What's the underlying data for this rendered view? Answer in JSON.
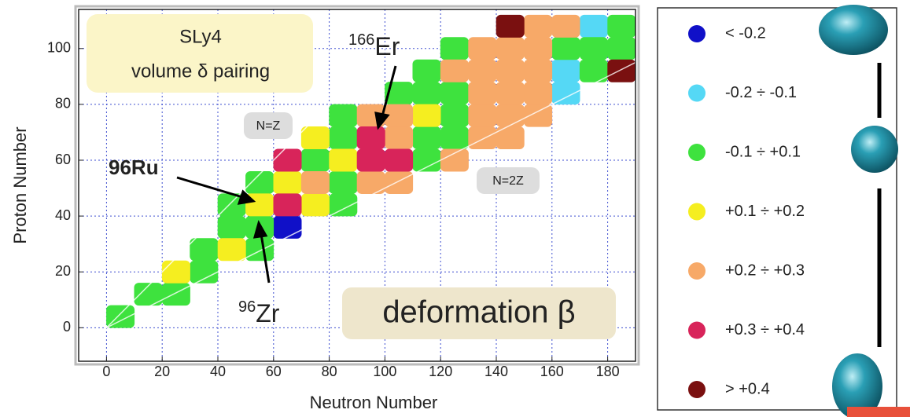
{
  "chart_data": {
    "type": "scatter",
    "x_label": "Neutron Number",
    "y_label": "Proton Number",
    "xlim": [
      -10,
      190
    ],
    "ylim": [
      -12,
      114
    ],
    "xticks": [
      0,
      20,
      40,
      60,
      80,
      100,
      120,
      140,
      160,
      180
    ],
    "yticks": [
      0,
      20,
      40,
      60,
      80,
      100
    ],
    "grid": true,
    "series": [
      {
        "name": "< -0.2",
        "color": "#1010c8",
        "x": [
          65
        ],
        "y": [
          36
        ]
      },
      {
        "name": "-0.2 ÷ -0.1",
        "color": "#55d8f5",
        "x": [
          165,
          165,
          175
        ],
        "y": [
          84,
          92,
          108
        ]
      },
      {
        "name": "-0.1 ÷ +0.1",
        "color": "#3ee23e",
        "x": [
          5,
          15,
          25,
          35,
          35,
          45,
          45,
          55,
          55,
          55,
          75,
          85,
          85,
          85,
          85,
          105,
          115,
          115,
          115,
          115,
          125,
          125,
          125,
          125,
          165,
          175,
          175,
          185,
          185
        ],
        "y": [
          4,
          12,
          12,
          20,
          28,
          36,
          44,
          28,
          36,
          52,
          60,
          44,
          52,
          68,
          76,
          84,
          60,
          68,
          84,
          92,
          68,
          76,
          84,
          100,
          100,
          92,
          100,
          100,
          108
        ]
      },
      {
        "name": "+0.1 ÷ +0.2",
        "color": "#f5ee20",
        "x": [
          25,
          45,
          55,
          65,
          75,
          75,
          85,
          115
        ],
        "y": [
          20,
          28,
          44,
          52,
          44,
          68,
          60,
          76
        ]
      },
      {
        "name": "+0.2 ÷ +0.3",
        "color": "#f7a968",
        "x": [
          75,
          95,
          95,
          105,
          105,
          105,
          125,
          125,
          135,
          135,
          135,
          135,
          135,
          145,
          145,
          145,
          145,
          145,
          155,
          155,
          155,
          155,
          155,
          165
        ],
        "y": [
          52,
          52,
          76,
          52,
          68,
          76,
          60,
          92,
          68,
          76,
          84,
          92,
          100,
          68,
          76,
          84,
          92,
          100,
          76,
          84,
          92,
          100,
          108,
          108
        ]
      },
      {
        "name": "+0.3 ÷ +0.4",
        "color": "#d8245a",
        "x": [
          65,
          65,
          95,
          95,
          105
        ],
        "y": [
          44,
          60,
          60,
          68,
          60
        ]
      },
      {
        "name": "> +0.4",
        "color": "#7a1010",
        "x": [
          145,
          185
        ],
        "y": [
          108,
          92
        ]
      }
    ],
    "annotations": {
      "model": "SLy4",
      "pairing": "volume δ pairing",
      "er": {
        "sup": "166",
        "text": "Er"
      },
      "ru": "96Ru",
      "zr": {
        "sup": "96",
        "text": "Zr"
      },
      "nz": "N=Z",
      "n2z": "N=2Z",
      "quantity": "deformation β"
    }
  }
}
